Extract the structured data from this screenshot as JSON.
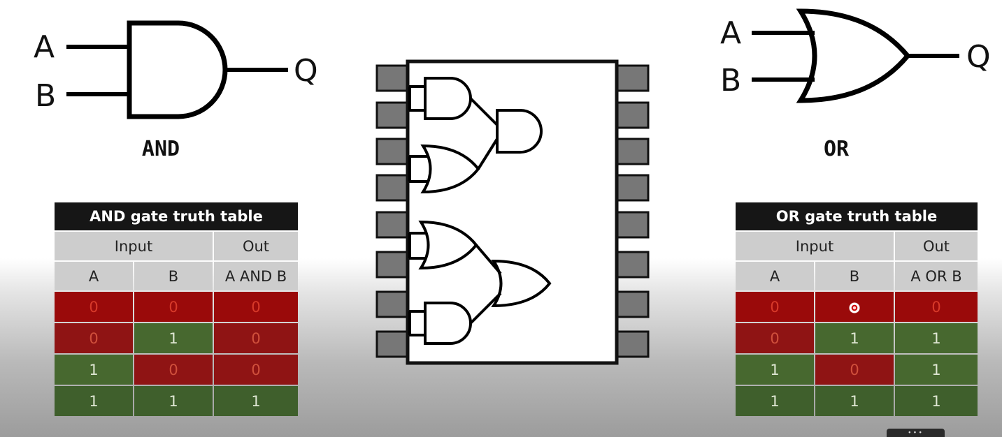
{
  "and_gate": {
    "input_a": "A",
    "input_b": "B",
    "output": "Q",
    "title": "AND"
  },
  "or_gate": {
    "input_a": "A",
    "input_b": "B",
    "output": "Q",
    "title": "OR"
  },
  "and_table": {
    "title": "AND gate truth table",
    "group_input": "Input",
    "group_out": "Out",
    "col_a": "A",
    "col_b": "B",
    "col_out": "A AND B",
    "rows": [
      {
        "a": "0",
        "b": "0",
        "out": "0"
      },
      {
        "a": "0",
        "b": "1",
        "out": "0"
      },
      {
        "a": "1",
        "b": "0",
        "out": "0"
      },
      {
        "a": "1",
        "b": "1",
        "out": "1"
      }
    ]
  },
  "or_table": {
    "title": "OR gate truth table",
    "group_input": "Input",
    "group_out": "Out",
    "col_a": "A",
    "col_b": "B",
    "col_out": "A OR B",
    "rows": [
      {
        "a": "0",
        "b": "0",
        "out": "0"
      },
      {
        "a": "0",
        "b": "1",
        "out": "1"
      },
      {
        "a": "1",
        "b": "0",
        "out": "1"
      },
      {
        "a": "1",
        "b": "1",
        "out": "1"
      }
    ]
  },
  "colors": {
    "zero_cell": "#9a0a0a",
    "one_cell": "#3f5f2c",
    "header_bar": "#161616",
    "header_cell": "#cdcdcd",
    "chip_pin": "#777777"
  }
}
